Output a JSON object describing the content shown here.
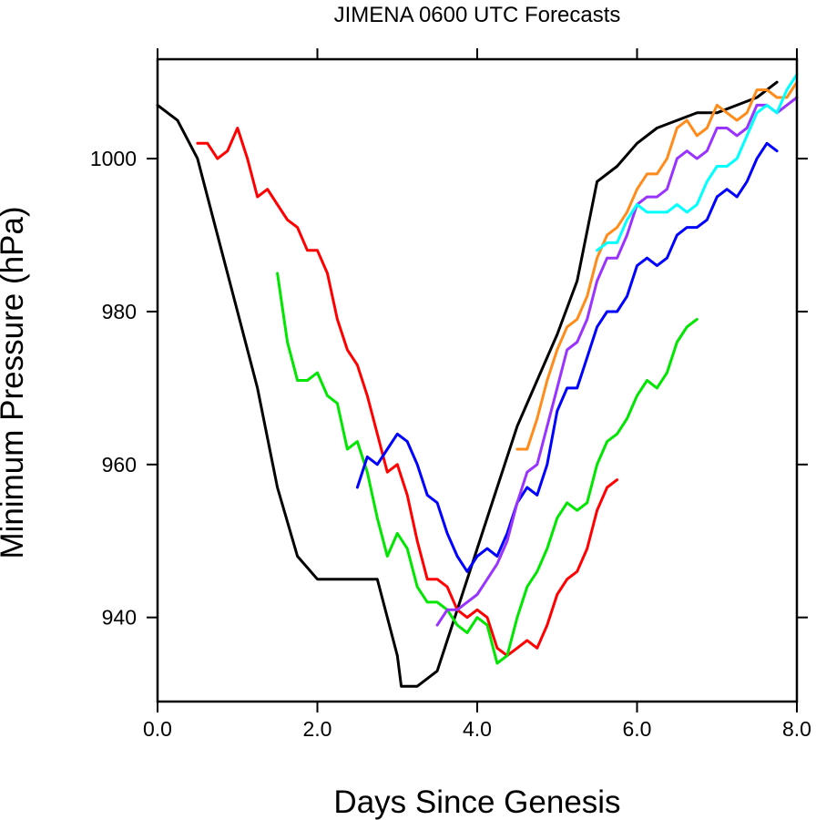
{
  "chart_data": {
    "type": "line",
    "title": "JIMENA 0600 UTC Forecasts",
    "xlabel": "Days Since Genesis",
    "ylabel": "Minimum Pressure (hPa)",
    "xlim": [
      0,
      8
    ],
    "ylim": [
      929,
      1013
    ],
    "xticks": [
      0,
      2,
      4,
      6,
      8
    ],
    "xtick_labels": [
      "0.0",
      "2.0",
      "4.0",
      "6.0",
      "8.0"
    ],
    "yticks": [
      940,
      960,
      980,
      1000
    ],
    "ytick_labels": [
      "940",
      "960",
      "980",
      "1000"
    ],
    "grid": false,
    "legend": "none",
    "series": [
      {
        "color": "#000000",
        "x": [
          0,
          0.25,
          0.5,
          0.75,
          1.0,
          1.25,
          1.5,
          1.75,
          2.0,
          2.25,
          2.5,
          2.75,
          3.0,
          3.05,
          3.25,
          3.5,
          3.75,
          4.0,
          4.25,
          4.5,
          4.75,
          5.0,
          5.25,
          5.5,
          5.75,
          6.0,
          6.25,
          6.5,
          6.75,
          7.0,
          7.25,
          7.5,
          7.75
        ],
        "y": [
          1007,
          1005,
          1000,
          990,
          980,
          970,
          957,
          948,
          945,
          945,
          945,
          945,
          935,
          931,
          931,
          933,
          941,
          949,
          957,
          965,
          971,
          977,
          984,
          997,
          999,
          1002,
          1004,
          1005,
          1006,
          1006,
          1007,
          1008,
          1010
        ]
      },
      {
        "color": "#ff0000",
        "x": [
          0.5,
          0.625,
          0.75,
          0.875,
          1.0,
          1.125,
          1.25,
          1.375,
          1.5,
          1.625,
          1.75,
          1.875,
          2.0,
          2.125,
          2.25,
          2.375,
          2.5,
          2.625,
          2.75,
          2.875,
          3.0,
          3.125,
          3.25,
          3.375,
          3.5,
          3.625,
          3.75,
          3.875,
          4.0,
          4.125,
          4.25,
          4.375,
          4.5,
          4.625,
          4.75,
          4.875,
          5.0,
          5.125,
          5.25,
          5.375,
          5.5,
          5.625,
          5.75
        ],
        "y": [
          1002,
          1002,
          1000,
          1001,
          1004,
          1000,
          995,
          996,
          994,
          992,
          991,
          988,
          988,
          985,
          979,
          975,
          973,
          969,
          964,
          959,
          960,
          956,
          950,
          945,
          945,
          944,
          941,
          940,
          941,
          940,
          936,
          935,
          936,
          937,
          936,
          939,
          943,
          945,
          946,
          949,
          954,
          957,
          958
        ]
      },
      {
        "color": "#00e600",
        "x": [
          1.5,
          1.625,
          1.75,
          1.875,
          2.0,
          2.125,
          2.25,
          2.375,
          2.5,
          2.625,
          2.75,
          2.875,
          3.0,
          3.125,
          3.25,
          3.375,
          3.5,
          3.625,
          3.75,
          3.875,
          4.0,
          4.125,
          4.25,
          4.375,
          4.5,
          4.625,
          4.75,
          4.875,
          5.0,
          5.125,
          5.25,
          5.375,
          5.5,
          5.625,
          5.75,
          5.875,
          6.0,
          6.125,
          6.25,
          6.375,
          6.5,
          6.625,
          6.75
        ],
        "y": [
          985,
          976,
          971,
          971,
          972,
          969,
          968,
          962,
          963,
          959,
          953,
          948,
          951,
          949,
          944,
          942,
          942,
          941,
          939,
          938,
          940,
          939,
          934,
          935,
          940,
          944,
          946,
          949,
          953,
          955,
          954,
          955,
          960,
          963,
          964,
          966,
          969,
          971,
          970,
          972,
          976,
          978,
          979
        ]
      },
      {
        "color": "#0000ff",
        "x": [
          2.5,
          2.625,
          2.75,
          2.875,
          3.0,
          3.125,
          3.25,
          3.375,
          3.5,
          3.625,
          3.75,
          3.875,
          4.0,
          4.125,
          4.25,
          4.375,
          4.5,
          4.625,
          4.75,
          4.875,
          5.0,
          5.125,
          5.25,
          5.375,
          5.5,
          5.625,
          5.75,
          5.875,
          6.0,
          6.125,
          6.25,
          6.375,
          6.5,
          6.625,
          6.75,
          6.875,
          7.0,
          7.125,
          7.25,
          7.375,
          7.5,
          7.625,
          7.75
        ],
        "y": [
          957,
          961,
          960,
          962,
          964,
          963,
          960,
          956,
          955,
          951,
          948,
          946,
          948,
          949,
          948,
          951,
          955,
          957,
          956,
          960,
          967,
          970,
          970,
          974,
          978,
          980,
          980,
          982,
          986,
          987,
          986,
          987,
          990,
          991,
          991,
          992,
          995,
          996,
          995,
          997,
          1000,
          1002,
          1001
        ]
      },
      {
        "color": "#9933ff",
        "x": [
          3.5,
          3.625,
          3.75,
          3.875,
          4.0,
          4.125,
          4.25,
          4.375,
          4.5,
          4.625,
          4.75,
          4.875,
          5.0,
          5.125,
          5.25,
          5.375,
          5.5,
          5.625,
          5.75,
          5.875,
          6.0,
          6.125,
          6.25,
          6.375,
          6.5,
          6.625,
          6.75,
          6.875,
          7.0,
          7.125,
          7.25,
          7.375,
          7.5,
          7.625,
          7.75,
          7.875,
          8.0
        ],
        "y": [
          939,
          941,
          941,
          942,
          943,
          945,
          947,
          950,
          955,
          959,
          960,
          965,
          970,
          975,
          976,
          979,
          984,
          987,
          987,
          990,
          994,
          995,
          995,
          996,
          1000,
          1001,
          1000,
          1001,
          1004,
          1004,
          1003,
          1004,
          1007,
          1007,
          1006,
          1007,
          1008
        ]
      },
      {
        "color": "#ff8c1a",
        "x": [
          4.5,
          4.625,
          4.75,
          4.875,
          5.0,
          5.125,
          5.25,
          5.375,
          5.5,
          5.625,
          5.75,
          5.875,
          6.0,
          6.125,
          6.25,
          6.375,
          6.5,
          6.625,
          6.75,
          6.875,
          7.0,
          7.125,
          7.25,
          7.375,
          7.5,
          7.625,
          7.75,
          7.875,
          8.0
        ],
        "y": [
          962,
          962,
          966,
          971,
          975,
          978,
          979,
          982,
          987,
          990,
          991,
          993,
          996,
          998,
          998,
          1000,
          1004,
          1005,
          1003,
          1004,
          1007,
          1006,
          1005,
          1006,
          1009,
          1009,
          1008,
          1008,
          1010
        ]
      },
      {
        "color": "#00ffff",
        "x": [
          5.5,
          5.625,
          5.75,
          5.875,
          6.0,
          6.125,
          6.25,
          6.375,
          6.5,
          6.625,
          6.75,
          6.875,
          7.0,
          7.125,
          7.25,
          7.375,
          7.5,
          7.625,
          7.75,
          7.875,
          8.0
        ],
        "y": [
          988,
          989,
          989,
          992,
          994,
          993,
          993,
          993,
          994,
          993,
          994,
          997,
          999,
          999,
          1000,
          1003,
          1006,
          1007,
          1006,
          1009,
          1011
        ]
      }
    ]
  }
}
